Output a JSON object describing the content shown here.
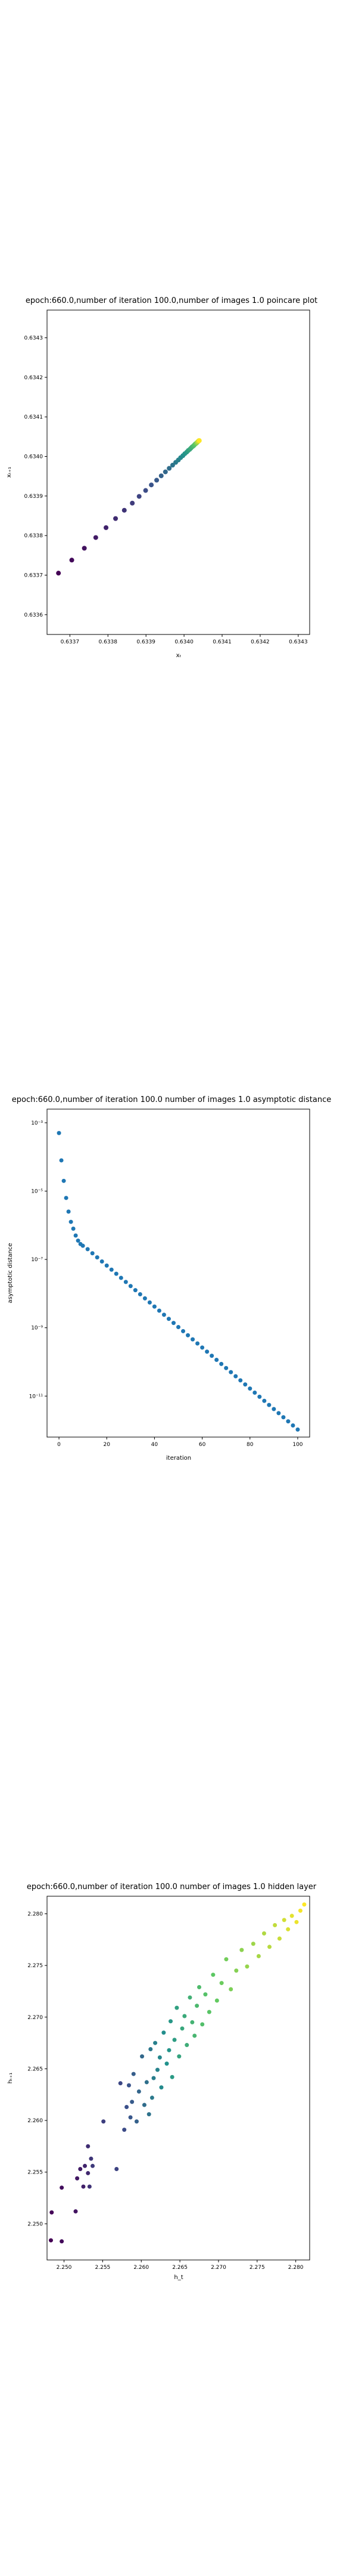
{
  "chart_data": [
    {
      "type": "scatter",
      "title": "epoch:660.0,number of iteration 100.0,number of images 1.0 poincare plot",
      "xlabel": "xₜ",
      "ylabel": "xₜ₊₁",
      "xlim": [
        0.63364,
        0.63433
      ],
      "ylim": [
        0.63355,
        0.63437
      ],
      "xticks": [
        0.6337,
        0.6338,
        0.6339,
        0.634,
        0.6341,
        0.6342,
        0.6343
      ],
      "xtick_labels": [
        "0.6337",
        "0.6338",
        "0.6339",
        "0.6340",
        "0.6341",
        "0.6342",
        "0.6343"
      ],
      "yticks": [
        0.6336,
        0.6337,
        0.6338,
        0.6339,
        0.634,
        0.6341,
        0.6342,
        0.6343
      ],
      "ytick_labels": [
        "0.6336",
        "0.6337",
        "0.6338",
        "0.6339",
        "0.6340",
        "0.6341",
        "0.6342",
        "0.6343"
      ],
      "colormap": "viridis (point color = iteration index)",
      "x": [
        0.63367,
        0.633705,
        0.633738,
        0.633768,
        0.633795,
        0.63382,
        0.633843,
        0.633864,
        0.633882,
        0.633899,
        0.633914,
        0.633928,
        0.63394,
        0.633951,
        0.633961,
        0.63397,
        0.633978,
        0.633985,
        0.633991,
        0.633997,
        0.634002,
        0.634007,
        0.634011,
        0.634015,
        0.634018,
        0.634021,
        0.634024,
        0.634026,
        0.634028,
        0.63403,
        0.634032,
        0.634033,
        0.634034,
        0.634035,
        0.634036,
        0.634037,
        0.634038,
        0.634039,
        0.63404,
        0.63404
      ],
      "y": [
        0.633705,
        0.633738,
        0.633768,
        0.633795,
        0.63382,
        0.633843,
        0.633864,
        0.633882,
        0.633899,
        0.633914,
        0.633928,
        0.63394,
        0.633951,
        0.633961,
        0.63397,
        0.633978,
        0.633985,
        0.633991,
        0.633997,
        0.634002,
        0.634007,
        0.634011,
        0.634015,
        0.634018,
        0.634021,
        0.634024,
        0.634026,
        0.634028,
        0.63403,
        0.634032,
        0.634033,
        0.634034,
        0.634035,
        0.634036,
        0.634037,
        0.634038,
        0.634039,
        0.63404,
        0.63404,
        0.63404
      ]
    },
    {
      "type": "scatter",
      "title": "epoch:660.0,number of iteration 100.0  number of images 1.0 asymptotic distance",
      "xlabel": "iteration",
      "ylabel": "asymptotic distance",
      "xlim": [
        -5,
        105
      ],
      "ylim_log10": [
        -12.2,
        -2.6
      ],
      "yscale": "log",
      "xticks": [
        0,
        20,
        40,
        60,
        80,
        100
      ],
      "xtick_labels": [
        "0",
        "20",
        "40",
        "60",
        "80",
        "100"
      ],
      "yticks_log10": [
        -3,
        -5,
        -7,
        -9,
        -11
      ],
      "ytick_labels": [
        "10⁻³",
        "10⁻⁵",
        "10⁻⁷",
        "10⁻⁹",
        "10⁻¹¹"
      ],
      "color": "#1f77b4",
      "x": [
        0,
        1,
        2,
        3,
        4,
        5,
        6,
        7,
        8,
        9,
        10,
        12,
        14,
        16,
        18,
        20,
        22,
        24,
        26,
        28,
        30,
        32,
        34,
        36,
        38,
        40,
        42,
        44,
        46,
        48,
        50,
        52,
        54,
        56,
        58,
        60,
        62,
        64,
        66,
        68,
        70,
        72,
        74,
        76,
        78,
        80,
        82,
        84,
        86,
        88,
        90,
        92,
        94,
        96,
        98,
        100
      ],
      "log10_y": [
        -3.3,
        -4.1,
        -4.7,
        -5.2,
        -5.6,
        -5.9,
        -6.1,
        -6.3,
        -6.45,
        -6.55,
        -6.6,
        -6.7,
        -6.82,
        -6.94,
        -7.06,
        -7.18,
        -7.3,
        -7.42,
        -7.54,
        -7.66,
        -7.78,
        -7.9,
        -8.02,
        -8.14,
        -8.26,
        -8.38,
        -8.5,
        -8.62,
        -8.74,
        -8.86,
        -8.98,
        -9.1,
        -9.22,
        -9.34,
        -9.46,
        -9.58,
        -9.7,
        -9.82,
        -9.94,
        -10.06,
        -10.18,
        -10.3,
        -10.42,
        -10.54,
        -10.66,
        -10.78,
        -10.9,
        -11.02,
        -11.14,
        -11.26,
        -11.38,
        -11.5,
        -11.62,
        -11.74,
        -11.86,
        -11.98
      ]
    },
    {
      "type": "scatter",
      "title": "epoch:660.0,number of iteration 100.0  number of images 1.0 hidden layer",
      "xlabel": "h_t",
      "ylabel": "hₜ₊₁",
      "xlim": [
        2.2478,
        2.2818
      ],
      "ylim": [
        2.2465,
        2.2817
      ],
      "xticks": [
        2.25,
        2.255,
        2.26,
        2.265,
        2.27,
        2.275,
        2.28
      ],
      "xtick_labels": [
        "2.250",
        "2.255",
        "2.260",
        "2.265",
        "2.270",
        "2.275",
        "2.280"
      ],
      "yticks": [
        2.25,
        2.255,
        2.26,
        2.265,
        2.27,
        2.275,
        2.28
      ],
      "ytick_labels": [
        "2.250",
        "2.255",
        "2.260",
        "2.265",
        "2.270",
        "2.275",
        "2.280"
      ],
      "colormap": "viridis (point color = iteration index)",
      "x": [
        2.2483,
        2.2484,
        2.2497,
        2.2497,
        2.2515,
        2.2517,
        2.2521,
        2.2525,
        2.2527,
        2.2531,
        2.2531,
        2.2533,
        2.2535,
        2.2537,
        2.2551,
        2.2568,
        2.2573,
        2.2578,
        2.2581,
        2.2584,
        2.2586,
        2.2588,
        2.259,
        2.2594,
        2.2597,
        2.2601,
        2.2604,
        2.2607,
        2.261,
        2.2612,
        2.2614,
        2.2616,
        2.2618,
        2.2621,
        2.2624,
        2.2626,
        2.2629,
        2.2633,
        2.2636,
        2.2638,
        2.264,
        2.2643,
        2.2646,
        2.2649,
        2.2653,
        2.2656,
        2.2659,
        2.2663,
        2.2666,
        2.2669,
        2.2672,
        2.2675,
        2.2679,
        2.2683,
        2.2688,
        2.2693,
        2.2698,
        2.2704,
        2.271,
        2.2716,
        2.2723,
        2.273,
        2.2737,
        2.2745,
        2.2752,
        2.2759,
        2.2766,
        2.2773,
        2.2779,
        2.2785,
        2.279,
        2.2795,
        2.2801,
        2.2806,
        2.2811
      ],
      "y": [
        2.2484,
        2.2511,
        2.2483,
        2.2535,
        2.2512,
        2.2544,
        2.2553,
        2.2536,
        2.2556,
        2.2549,
        2.2575,
        2.2536,
        2.2563,
        2.2556,
        2.2599,
        2.2553,
        2.2636,
        2.2591,
        2.2613,
        2.2634,
        2.2603,
        2.2618,
        2.2645,
        2.2599,
        2.2628,
        2.2662,
        2.2615,
        2.2637,
        2.2606,
        2.2669,
        2.2622,
        2.2641,
        2.2675,
        2.2649,
        2.2661,
        2.2632,
        2.2685,
        2.2655,
        2.2668,
        2.2696,
        2.2642,
        2.2678,
        2.2709,
        2.2662,
        2.2689,
        2.2701,
        2.2673,
        2.2719,
        2.2695,
        2.2682,
        2.2711,
        2.2729,
        2.2693,
        2.2722,
        2.2705,
        2.2741,
        2.2716,
        2.2733,
        2.2756,
        2.2727,
        2.2745,
        2.2765,
        2.2749,
        2.2771,
        2.2759,
        2.2781,
        2.2768,
        2.2789,
        2.2776,
        2.2794,
        2.2785,
        2.2798,
        2.2792,
        2.2803,
        2.2809
      ]
    }
  ]
}
